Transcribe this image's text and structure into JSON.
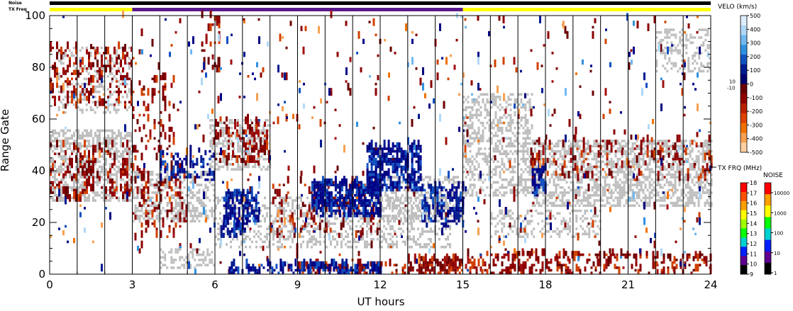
{
  "strip": {
    "noise_label": "Noise",
    "freq_label": "TX Freq"
  },
  "chart_data": {
    "type": "heatmap",
    "xlabel": "UT hours",
    "ylabel": "Range Gate",
    "xlim": [
      0,
      24
    ],
    "ylim": [
      0,
      100
    ],
    "x_ticks": [
      "0",
      "3",
      "6",
      "9",
      "12",
      "15",
      "18",
      "21",
      "24"
    ],
    "y_ticks": [
      "0",
      "20",
      "40",
      "60",
      "80",
      "100"
    ],
    "scan_boundaries_hours": [
      1,
      2,
      3,
      4,
      5,
      6,
      7,
      8,
      9,
      10,
      11,
      12,
      13,
      14,
      15,
      16,
      17,
      18,
      19,
      20,
      21,
      22,
      23,
      24
    ],
    "tx_freq_strip": [
      {
        "from": 0,
        "to": 3,
        "color": "#ffff00"
      },
      {
        "from": 3,
        "to": 15,
        "color": "#5a1a8c"
      },
      {
        "from": 15,
        "to": 24,
        "color": "#ffff00"
      }
    ],
    "ground_scatter_color": "#bebebe",
    "velocity_scale": {
      "title": "VELO (km/s)",
      "ticks": [
        "500",
        "400",
        "300",
        "200",
        "100",
        "0",
        "-100",
        "-200",
        "-300",
        "-400",
        "-500"
      ],
      "mid_labels": [
        "10",
        "-10"
      ],
      "colors": [
        "#ddeeff",
        "#b0d8f8",
        "#70b8f0",
        "#3090e0",
        "#1050c0",
        "#001a90",
        "#000070",
        "#6a0000",
        "#900000",
        "#b82000",
        "#e04000",
        "#f07000",
        "#f8a050",
        "#fcd0a0"
      ]
    },
    "tx_freq_scale": {
      "title": "TX FRQ (MHz)",
      "ticks": [
        "18",
        "17",
        "16",
        "15",
        "14",
        "13",
        "12",
        "11",
        "10",
        "9"
      ],
      "colors": [
        "#ff0000",
        "#ff5000",
        "#ffa000",
        "#ffff00",
        "#a0ff00",
        "#00ff00",
        "#00d0d0",
        "#0020ff",
        "#600090",
        "#000000"
      ]
    },
    "noise_scale": {
      "title": "NOISE",
      "ticks": [
        "10000",
        "1000",
        "100",
        "10",
        "1"
      ],
      "colors": [
        "#ff0000",
        "#ffa000",
        "#ffff00",
        "#00ff00",
        "#00d0d0",
        "#0020ff",
        "#600090",
        "#000000"
      ]
    },
    "echo_regions": [
      {
        "kind": "ground",
        "t0": 0,
        "t1": 3,
        "g0": 28,
        "g1": 56,
        "density": 0.55
      },
      {
        "kind": "ground",
        "t0": 3,
        "t1": 6,
        "g0": 20,
        "g1": 40,
        "density": 0.45
      },
      {
        "kind": "ground",
        "t0": 5.8,
        "t1": 8,
        "g0": 40,
        "g1": 60,
        "density": 0.5
      },
      {
        "kind": "ground",
        "t0": 6,
        "t1": 14.5,
        "g0": 10,
        "g1": 30,
        "density": 0.35
      },
      {
        "kind": "ground",
        "t0": 12,
        "t1": 15,
        "g0": 20,
        "g1": 38,
        "density": 0.4
      },
      {
        "kind": "ground",
        "t0": 15,
        "t1": 17.5,
        "g0": 30,
        "g1": 70,
        "density": 0.4
      },
      {
        "kind": "ground",
        "t0": 16,
        "t1": 20,
        "g0": 14,
        "g1": 25,
        "density": 0.3
      },
      {
        "kind": "ground",
        "t0": 17.5,
        "t1": 24,
        "g0": 26,
        "g1": 52,
        "density": 0.55
      },
      {
        "kind": "ground",
        "t0": 22,
        "t1": 24,
        "g0": 78,
        "g1": 95,
        "density": 0.35
      },
      {
        "kind": "ground",
        "t0": 4,
        "t1": 6,
        "g0": 2,
        "g1": 10,
        "density": 0.35
      },
      {
        "kind": "ground",
        "t0": 0.3,
        "t1": 3,
        "g0": 62,
        "g1": 88,
        "density": 0.25
      },
      {
        "kind": "neg",
        "t0": 0,
        "t1": 3,
        "g0": 28,
        "g1": 50,
        "density": 0.18
      },
      {
        "kind": "neg",
        "t0": 0,
        "t1": 3,
        "g0": 64,
        "g1": 88,
        "density": 0.2
      },
      {
        "kind": "neg",
        "t0": 3,
        "t1": 5,
        "g0": 14,
        "g1": 42,
        "density": 0.12
      },
      {
        "kind": "neg",
        "t0": 3,
        "t1": 4.5,
        "g0": 44,
        "g1": 76,
        "density": 0.12
      },
      {
        "kind": "neg",
        "t0": 5.5,
        "t1": 6.2,
        "g0": 78,
        "g1": 100,
        "density": 0.15
      },
      {
        "kind": "neg",
        "t0": 6,
        "t1": 8,
        "g0": 42,
        "g1": 60,
        "density": 0.18
      },
      {
        "kind": "neg",
        "t0": 13,
        "t1": 15,
        "g0": 0,
        "g1": 6,
        "density": 0.55
      },
      {
        "kind": "neg",
        "t0": 9,
        "t1": 13,
        "g0": 0,
        "g1": 4,
        "density": 0.3
      },
      {
        "kind": "neg",
        "t0": 15,
        "t1": 24,
        "g0": 0,
        "g1": 8,
        "density": 0.25
      },
      {
        "kind": "neg",
        "t0": 17.5,
        "t1": 24,
        "g0": 36,
        "g1": 52,
        "density": 0.1
      },
      {
        "kind": "neg",
        "t0": 8,
        "t1": 12,
        "g0": 14,
        "g1": 36,
        "density": 0.12
      },
      {
        "kind": "neg",
        "t0": 3,
        "t1": 24,
        "g0": 0,
        "g1": 100,
        "density": 0.012
      },
      {
        "kind": "pos",
        "t0": 6.3,
        "t1": 7.6,
        "g0": 20,
        "g1": 32,
        "density": 0.55
      },
      {
        "kind": "pos",
        "t0": 9.5,
        "t1": 12,
        "g0": 22,
        "g1": 36,
        "density": 0.55
      },
      {
        "kind": "pos",
        "t0": 11.5,
        "t1": 13.5,
        "g0": 32,
        "g1": 50,
        "density": 0.5
      },
      {
        "kind": "pos",
        "t0": 13.5,
        "t1": 15,
        "g0": 18,
        "g1": 34,
        "density": 0.35
      },
      {
        "kind": "pos",
        "t0": 4,
        "t1": 6,
        "g0": 36,
        "g1": 48,
        "density": 0.25
      },
      {
        "kind": "pos",
        "t0": 6.5,
        "t1": 12,
        "g0": 0,
        "g1": 4,
        "density": 0.35
      },
      {
        "kind": "pos",
        "t0": 6.2,
        "t1": 7.2,
        "g0": 14,
        "g1": 20,
        "density": 0.35
      },
      {
        "kind": "pos",
        "t0": 17.5,
        "t1": 18,
        "g0": 30,
        "g1": 42,
        "density": 0.3
      },
      {
        "kind": "pos",
        "t0": 0,
        "t1": 24,
        "g0": 0,
        "g1": 100,
        "density": 0.006
      },
      {
        "kind": "light",
        "t0": 0,
        "t1": 24,
        "g0": 0,
        "g1": 100,
        "density": 0.006
      }
    ]
  }
}
